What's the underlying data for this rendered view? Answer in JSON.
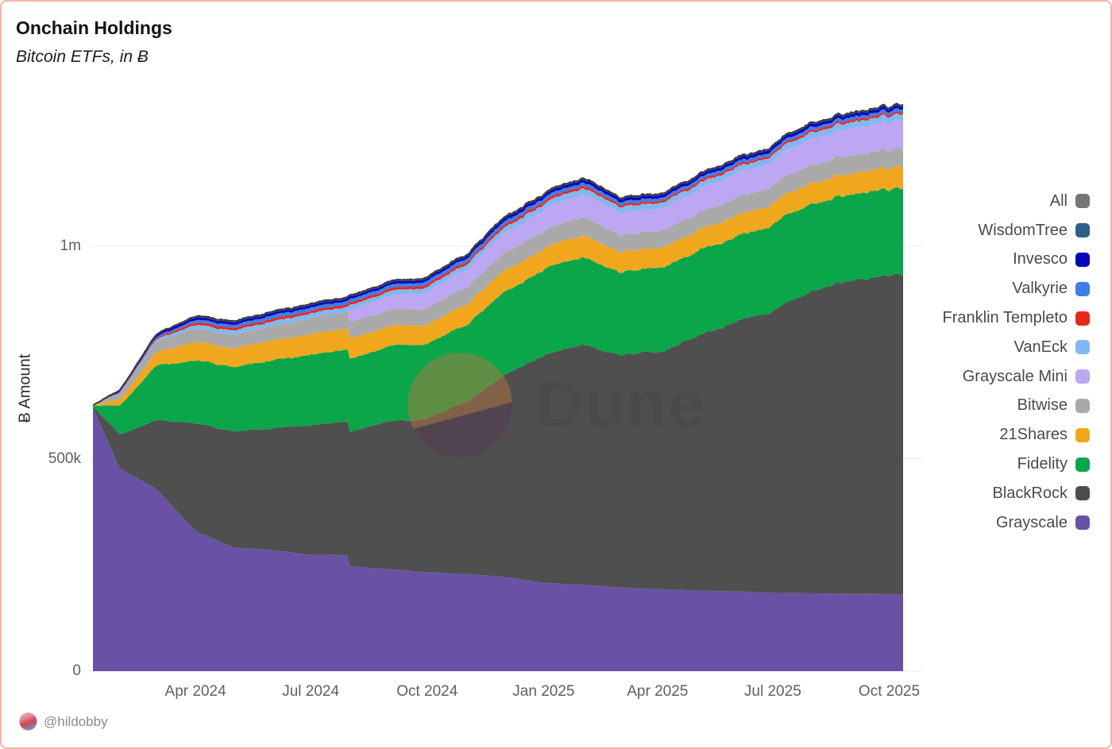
{
  "header": {
    "title": "Onchain Holdings",
    "subtitle": "Bitcoin ETFs, in ₿"
  },
  "watermark": {
    "text": "Dune",
    "logo_icon": "dune-logo-circle"
  },
  "footer": {
    "handle": "@hildobby"
  },
  "y_axis": {
    "label": "₿ Amount",
    "ticks": [
      {
        "label": "1m",
        "value": 1000000
      },
      {
        "label": "500k",
        "value": 500000
      },
      {
        "label": "0",
        "value": 0
      }
    ]
  },
  "x_axis": {
    "ticks": [
      {
        "label": "Apr 2024",
        "date": "2024-04-01"
      },
      {
        "label": "Jul 2024",
        "date": "2024-07-01"
      },
      {
        "label": "Oct 2024",
        "date": "2024-10-01"
      },
      {
        "label": "Jan 2025",
        "date": "2025-01-01"
      },
      {
        "label": "Apr 2025",
        "date": "2025-04-01"
      },
      {
        "label": "Jul 2025",
        "date": "2025-07-01"
      },
      {
        "label": "Oct 2025",
        "date": "2025-10-01"
      }
    ]
  },
  "legend": [
    {
      "label": "All",
      "color": "#757575"
    },
    {
      "label": "WisdomTree",
      "color": "#2d5e8c"
    },
    {
      "label": "Invesco",
      "color": "#0707b8"
    },
    {
      "label": "Valkyrie",
      "color": "#3f7de8"
    },
    {
      "label": "Franklin Templeto",
      "color": "#e6281c"
    },
    {
      "label": "VanEck",
      "color": "#83b7f0"
    },
    {
      "label": "Grayscale Mini",
      "color": "#bda6f2"
    },
    {
      "label": "Bitwise",
      "color": "#a9a9a9"
    },
    {
      "label": "21Shares",
      "color": "#f0a71e"
    },
    {
      "label": "Fidelity",
      "color": "#0ba54a"
    },
    {
      "label": "BlackRock",
      "color": "#4d4d4d"
    },
    {
      "label": "Grayscale",
      "color": "#6952a5"
    }
  ],
  "chart_data": {
    "type": "area",
    "stacked": true,
    "title": "Onchain Holdings",
    "subtitle": "Bitcoin ETFs, in ₿",
    "unit": "BTC",
    "ylabel": "₿ Amount",
    "ylim": [
      0,
      1333000
    ],
    "xlim": [
      "2024-01-11",
      "2025-10-12"
    ],
    "grid": "horizontal",
    "legend_position": "right",
    "x": [
      "2024-01-11",
      "2024-02-01",
      "2024-03-01",
      "2024-04-01",
      "2024-05-01",
      "2024-06-01",
      "2024-07-01",
      "2024-07-30",
      "2024-08-01",
      "2024-09-01",
      "2024-10-01",
      "2024-11-01",
      "2024-12-01",
      "2025-01-01",
      "2025-02-01",
      "2025-03-01",
      "2025-04-01",
      "2025-05-01",
      "2025-06-01",
      "2025-07-01",
      "2025-08-01",
      "2025-09-01",
      "2025-10-01",
      "2025-10-12"
    ],
    "series": [
      {
        "name": "Grayscale",
        "color": "#6952a5",
        "values": [
          619000,
          478000,
          430000,
          329000,
          291000,
          285000,
          274000,
          272000,
          246000,
          240000,
          233000,
          228000,
          221000,
          208000,
          203000,
          197000,
          193000,
          190000,
          187000,
          184000,
          183000,
          182000,
          181000,
          179000
        ]
      },
      {
        "name": "BlackRock",
        "color": "#4f4f4f",
        "values": [
          3000,
          80000,
          162000,
          253000,
          274000,
          287000,
          305000,
          315000,
          317000,
          347000,
          362000,
          405000,
          472000,
          535000,
          568000,
          545000,
          555000,
          595000,
          636000,
          665000,
          715000,
          735000,
          750000,
          755000
        ]
      },
      {
        "name": "Fidelity",
        "color": "#0ba54a",
        "values": [
          2000,
          68000,
          128000,
          147000,
          152000,
          160000,
          167000,
          170000,
          171000,
          175000,
          178000,
          181000,
          196000,
          203000,
          205000,
          195000,
          197000,
          199000,
          202000,
          204000,
          206000,
          204000,
          202000,
          205000
        ]
      },
      {
        "name": "21Shares",
        "color": "#f0a71e",
        "values": [
          300,
          15000,
          31000,
          43000,
          45000,
          47000,
          48000,
          48000,
          48000,
          46000,
          46000,
          47000,
          50000,
          50000,
          51000,
          48000,
          47000,
          48000,
          49000,
          49000,
          50000,
          50000,
          50000,
          51000
        ]
      },
      {
        "name": "Bitwise",
        "color": "#a9a9a9",
        "values": [
          800,
          12000,
          26000,
          31000,
          32000,
          34000,
          38000,
          39000,
          39000,
          38000,
          39000,
          40000,
          42000,
          42000,
          43000,
          41000,
          40000,
          41000,
          42000,
          42000,
          43000,
          43000,
          43000,
          44000
        ]
      },
      {
        "name": "Grayscale Mini",
        "color": "#bda6f2",
        "values": [
          0,
          0,
          0,
          0,
          0,
          0,
          0,
          0,
          28000,
          33000,
          38000,
          42000,
          46000,
          50000,
          53000,
          52000,
          52000,
          54000,
          57000,
          59000,
          62000,
          64000,
          65000,
          66000
        ]
      },
      {
        "name": "VanEck",
        "color": "#83b7f0",
        "values": [
          100,
          2500,
          5000,
          9000,
          10000,
          11000,
          11000,
          11000,
          11000,
          11000,
          12000,
          12000,
          13000,
          14000,
          14000,
          14000,
          14000,
          14000,
          14000,
          14000,
          15000,
          15000,
          15000,
          15000
        ]
      },
      {
        "name": "Franklin Templeto",
        "color": "#e6281c",
        "values": [
          100,
          1400,
          3000,
          6000,
          6000,
          6000,
          6000,
          6000,
          6000,
          6000,
          6000,
          6000,
          6000,
          6000,
          6000,
          5000,
          5000,
          5000,
          5000,
          5000,
          5000,
          5000,
          5000,
          5000
        ]
      },
      {
        "name": "Valkyrie",
        "color": "#3f7de8",
        "values": [
          100,
          1200,
          3000,
          6000,
          7000,
          8000,
          8000,
          8000,
          8000,
          8000,
          8000,
          8000,
          8000,
          8000,
          8000,
          7000,
          7000,
          7000,
          7000,
          7000,
          7000,
          7000,
          7000,
          7000
        ]
      },
      {
        "name": "Invesco",
        "color": "#0707b8",
        "values": [
          100,
          3700,
          5000,
          6000,
          6000,
          6000,
          6000,
          6000,
          6000,
          6000,
          6000,
          6000,
          7000,
          7000,
          7000,
          7000,
          7000,
          7000,
          7000,
          7000,
          7000,
          7000,
          7000,
          7000
        ]
      },
      {
        "name": "WisdomTree",
        "color": "#2d5e8c",
        "values": [
          0,
          200,
          1000,
          3000,
          3000,
          3000,
          3000,
          3000,
          3000,
          3000,
          3000,
          3000,
          3000,
          3000,
          3000,
          3000,
          3000,
          3000,
          3000,
          3000,
          3000,
          3000,
          3000,
          3000
        ]
      }
    ],
    "total_series": {
      "name": "All",
      "color": "#3c3c3c",
      "is_sum_of_series": true
    }
  }
}
